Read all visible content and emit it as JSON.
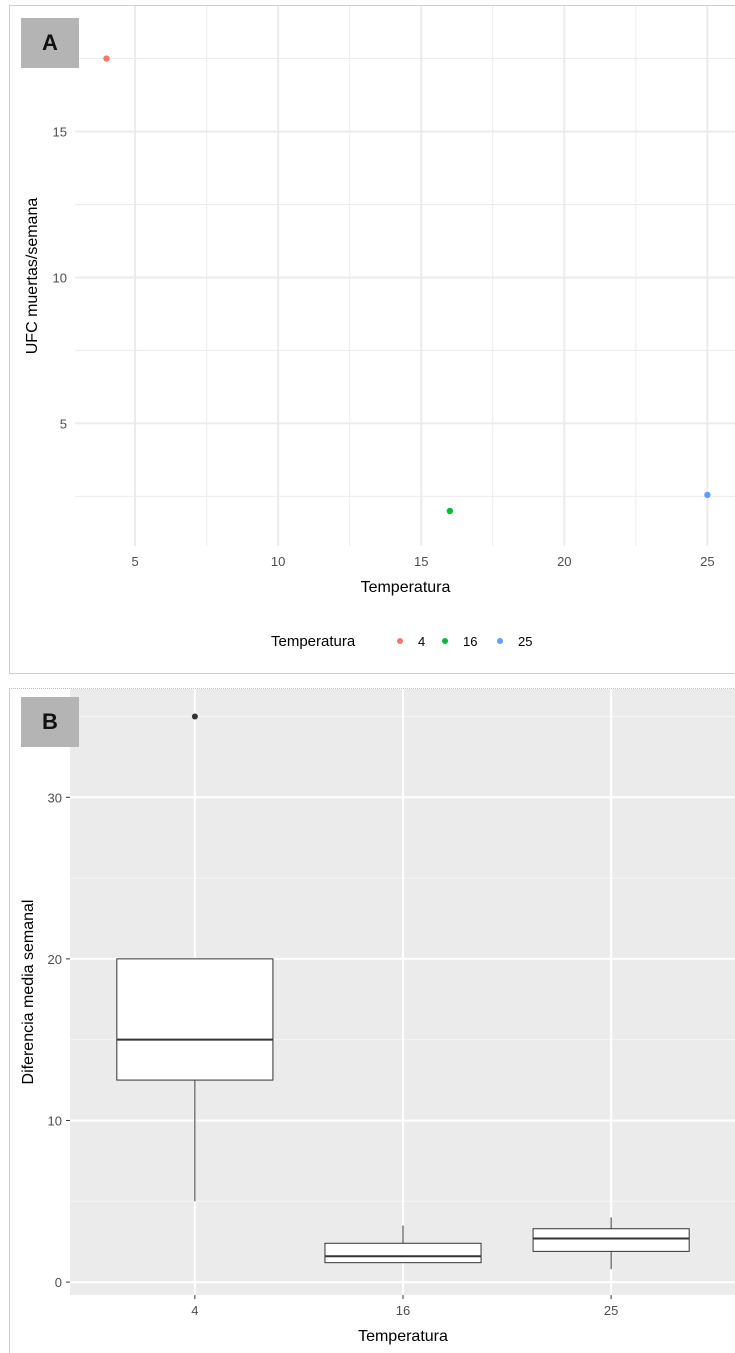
{
  "chart_data": [
    {
      "panel_tag": "A",
      "type": "scatter",
      "xlabel": "Temperatura",
      "ylabel": "UFC muertas/semana",
      "xlim": [
        2.9,
        26
      ],
      "ylim": [
        0.8,
        19.3
      ],
      "x_ticks": [
        5,
        10,
        15,
        20,
        25
      ],
      "y_ticks": [
        5,
        10,
        15
      ],
      "grid": true,
      "background": "white",
      "legend": {
        "position": "bottom",
        "title": "Temperatura",
        "entries": [
          {
            "label": "4",
            "color": "#F8766D"
          },
          {
            "label": "16",
            "color": "#00BA38"
          },
          {
            "label": "25",
            "color": "#619CFF"
          }
        ]
      },
      "series": [
        {
          "name": "4",
          "color": "#F8766D",
          "points": [
            {
              "x": 4,
              "y": 17.5
            }
          ]
        },
        {
          "name": "16",
          "color": "#00BA38",
          "points": [
            {
              "x": 16,
              "y": 2.0
            }
          ]
        },
        {
          "name": "25",
          "color": "#619CFF",
          "points": [
            {
              "x": 25,
              "y": 2.55
            }
          ]
        }
      ]
    },
    {
      "panel_tag": "B",
      "type": "box",
      "xlabel": "Temperatura",
      "ylabel": "Diferencia media semanal",
      "categories": [
        "4",
        "16",
        "25"
      ],
      "ylim": [
        -0.8,
        36.7
      ],
      "y_ticks": [
        0,
        10,
        20,
        30
      ],
      "grid": true,
      "background": "#EBEBEB",
      "boxes": [
        {
          "category": "4",
          "whisker_low": 5.0,
          "q1": 12.5,
          "median": 15.0,
          "q3": 20.0,
          "whisker_high": 20.0,
          "outliers": [
            35.0
          ]
        },
        {
          "category": "16",
          "whisker_low": 1.2,
          "q1": 1.2,
          "median": 1.6,
          "q3": 2.4,
          "whisker_high": 3.5,
          "outliers": []
        },
        {
          "category": "25",
          "whisker_low": 0.8,
          "q1": 1.9,
          "median": 2.7,
          "q3": 3.3,
          "whisker_high": 4.0,
          "outliers": []
        }
      ]
    }
  ]
}
